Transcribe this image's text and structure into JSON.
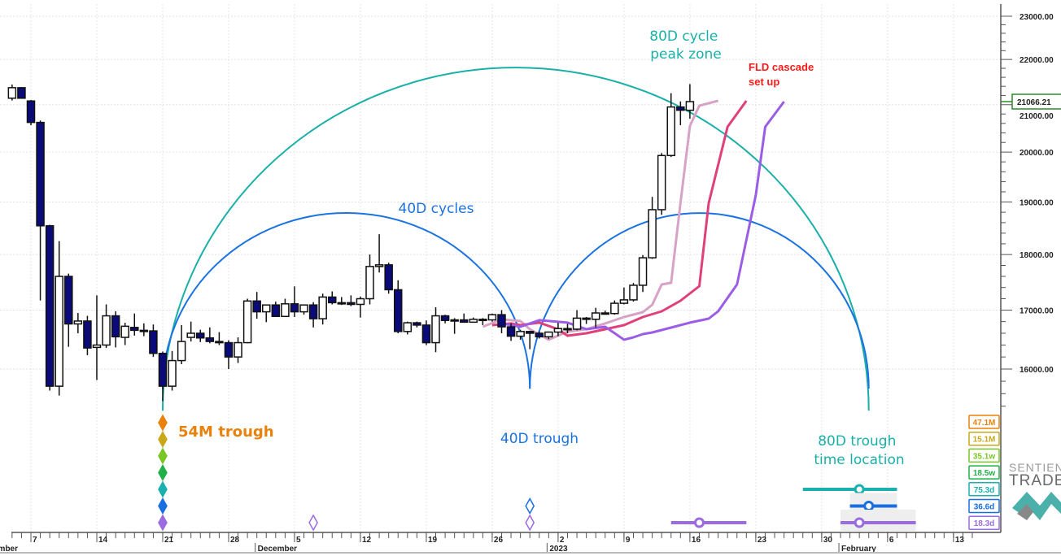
{
  "chart_data": {
    "type": "candlestick",
    "y_scale": "log",
    "ylim": [
      15200,
      23100
    ],
    "xlim": [
      "2022-11-05",
      "2023-02-17"
    ],
    "grid": true,
    "y_ticks": [
      "16000.00",
      "17000.00",
      "18000.00",
      "19000.00",
      "20000.00",
      "21000.00",
      "22000.00",
      "23000.00"
    ],
    "last_price": 21066.21,
    "last_price_label": "21066.21",
    "colors": {
      "up": "#ffffff",
      "down": "#0a0a78",
      "last_price_box": "#2a8a2a"
    },
    "x_ticks": [
      {
        "date": "2022-11-07",
        "label": "7"
      },
      {
        "date": "2022-11-14",
        "label": "14"
      },
      {
        "date": "2022-11-21",
        "label": "21"
      },
      {
        "date": "2022-11-28",
        "label": "28"
      },
      {
        "date": "2022-12-05",
        "label": "5"
      },
      {
        "date": "2022-12-12",
        "label": "12"
      },
      {
        "date": "2022-12-19",
        "label": "19"
      },
      {
        "date": "2022-12-26",
        "label": "26"
      },
      {
        "date": "2023-01-02",
        "label": "2"
      },
      {
        "date": "2023-01-09",
        "label": "9"
      },
      {
        "date": "2023-01-16",
        "label": "16"
      },
      {
        "date": "2023-01-23",
        "label": "23"
      },
      {
        "date": "2023-01-30",
        "label": "30"
      },
      {
        "date": "2023-02-06",
        "label": "6"
      },
      {
        "date": "2023-02-13",
        "label": "13"
      }
    ],
    "month_labels": [
      {
        "date": "2022-11-01",
        "label": "November"
      },
      {
        "date": "2022-12-01",
        "label": "December"
      },
      {
        "date": "2023-01-01",
        "label": "2023"
      },
      {
        "date": "2023-02-01",
        "label": "February"
      }
    ],
    "candles": [
      [
        "2022-11-05",
        21140,
        21440,
        21090,
        21370
      ],
      [
        "2022-11-06",
        21370,
        21380,
        21140,
        21140
      ],
      [
        "2022-11-07",
        21080,
        21100,
        20560,
        20620
      ],
      [
        "2022-11-08",
        20620,
        20660,
        17170,
        18540
      ],
      [
        "2022-11-09",
        18540,
        18560,
        15650,
        15720
      ],
      [
        "2022-11-10",
        15720,
        18250,
        15570,
        17600
      ],
      [
        "2022-11-11",
        17600,
        17650,
        16370,
        16760
      ],
      [
        "2022-11-12",
        16760,
        16950,
        16600,
        16810
      ],
      [
        "2022-11-13",
        16810,
        16900,
        16230,
        16350
      ],
      [
        "2022-11-14",
        16360,
        17260,
        15820,
        16400
      ],
      [
        "2022-11-15",
        16400,
        17100,
        16350,
        16900
      ],
      [
        "2022-11-16",
        16900,
        16980,
        16360,
        16540
      ],
      [
        "2022-11-17",
        16530,
        16780,
        16400,
        16720
      ],
      [
        "2022-11-18",
        16700,
        16940,
        16560,
        16650
      ],
      [
        "2022-11-19",
        16650,
        16770,
        16550,
        16640
      ],
      [
        "2022-11-20",
        16640,
        16750,
        16200,
        16260
      ],
      [
        "2022-11-21",
        16260,
        16290,
        15480,
        15720
      ],
      [
        "2022-11-22",
        15720,
        16300,
        15650,
        16140
      ],
      [
        "2022-11-23",
        16140,
        16740,
        16080,
        16460
      ],
      [
        "2022-11-24",
        16530,
        16800,
        16460,
        16600
      ],
      [
        "2022-11-25",
        16600,
        16660,
        16450,
        16520
      ],
      [
        "2022-11-26",
        16520,
        16700,
        16430,
        16460
      ],
      [
        "2022-11-27",
        16460,
        16620,
        16400,
        16440
      ],
      [
        "2022-11-28",
        16440,
        16480,
        16000,
        16200
      ],
      [
        "2022-11-29",
        16200,
        16530,
        16100,
        16440
      ],
      [
        "2022-11-30",
        16440,
        17200,
        16430,
        17160
      ],
      [
        "2022-12-01",
        17160,
        17320,
        16850,
        16970
      ],
      [
        "2022-12-02",
        16970,
        17100,
        16790,
        17090
      ],
      [
        "2022-12-03",
        17090,
        17150,
        16890,
        16890
      ],
      [
        "2022-12-04",
        16890,
        17200,
        16880,
        17110
      ],
      [
        "2022-12-05",
        17110,
        17420,
        16880,
        16970
      ],
      [
        "2022-12-06",
        16970,
        17100,
        16920,
        17090
      ],
      [
        "2022-12-07",
        17090,
        17140,
        16700,
        16850
      ],
      [
        "2022-12-08",
        16850,
        17290,
        16750,
        17230
      ],
      [
        "2022-12-09",
        17230,
        17330,
        17100,
        17130
      ],
      [
        "2022-12-10",
        17130,
        17230,
        17090,
        17130
      ],
      [
        "2022-12-11",
        17130,
        17260,
        17070,
        17100
      ],
      [
        "2022-12-12",
        17100,
        17240,
        16870,
        17200
      ],
      [
        "2022-12-13",
        17200,
        18000,
        17100,
        17780
      ],
      [
        "2022-12-14",
        17780,
        18380,
        17670,
        17810
      ],
      [
        "2022-12-15",
        17810,
        17850,
        17290,
        17360
      ],
      [
        "2022-12-16",
        17360,
        17530,
        16600,
        16630
      ],
      [
        "2022-12-17",
        16630,
        16800,
        16580,
        16780
      ],
      [
        "2022-12-18",
        16780,
        16800,
        16700,
        16740
      ],
      [
        "2022-12-19",
        16740,
        16820,
        16400,
        16440
      ],
      [
        "2022-12-20",
        16440,
        17050,
        16280,
        16900
      ],
      [
        "2022-12-21",
        16900,
        16920,
        16770,
        16820
      ],
      [
        "2022-12-22",
        16820,
        16860,
        16590,
        16830
      ],
      [
        "2022-12-23",
        16830,
        16940,
        16780,
        16790
      ],
      [
        "2022-12-24",
        16790,
        16870,
        16790,
        16840
      ],
      [
        "2022-12-25",
        16840,
        16860,
        16740,
        16830
      ],
      [
        "2022-12-26",
        16830,
        16940,
        16800,
        16920
      ],
      [
        "2022-12-27",
        16920,
        17000,
        16600,
        16710
      ],
      [
        "2022-12-28",
        16710,
        16770,
        16470,
        16550
      ],
      [
        "2022-12-29",
        16550,
        16660,
        16490,
        16630
      ],
      [
        "2022-12-30",
        16630,
        16640,
        16330,
        16600
      ],
      [
        "2022-12-31",
        16600,
        16630,
        16510,
        16540
      ],
      [
        "2023-01-01",
        16540,
        16630,
        16500,
        16620
      ],
      [
        "2023-01-02",
        16620,
        16780,
        16550,
        16680
      ],
      [
        "2023-01-03",
        16680,
        16760,
        16600,
        16670
      ],
      [
        "2023-01-04",
        16670,
        17000,
        16650,
        16860
      ],
      [
        "2023-01-05",
        16860,
        16880,
        16760,
        16840
      ],
      [
        "2023-01-06",
        16840,
        17040,
        16700,
        16950
      ],
      [
        "2023-01-07",
        16950,
        16990,
        16920,
        16940
      ],
      [
        "2023-01-08",
        16940,
        17170,
        16920,
        17120
      ],
      [
        "2023-01-09",
        17120,
        17400,
        17100,
        17180
      ],
      [
        "2023-01-10",
        17180,
        17480,
        17150,
        17440
      ],
      [
        "2023-01-11",
        17440,
        17990,
        17320,
        17940
      ],
      [
        "2023-01-12",
        17940,
        19100,
        17920,
        18850
      ],
      [
        "2023-01-13",
        18850,
        19980,
        18750,
        19930
      ],
      [
        "2023-01-14",
        19930,
        21250,
        19900,
        20950
      ],
      [
        "2023-01-15",
        20950,
        21070,
        20560,
        20880
      ],
      [
        "2023-01-16",
        20880,
        21450,
        20700,
        21066.21
      ]
    ],
    "fld_lines": [
      {
        "color": "#d6a3c6",
        "points": [
          [
            "2022-12-25",
            16711
          ],
          [
            "2022-12-27",
            16838
          ],
          [
            "2022-12-29",
            16810
          ],
          [
            "2022-12-30",
            16669
          ],
          [
            "2023-01-01",
            16490
          ],
          [
            "2023-01-03",
            16627
          ],
          [
            "2023-01-05",
            16669
          ],
          [
            "2023-01-07",
            16768
          ],
          [
            "2023-01-09",
            16880
          ],
          [
            "2023-01-11",
            16965
          ],
          [
            "2023-01-12",
            17093
          ],
          [
            "2023-01-13",
            17454
          ],
          [
            "2023-01-14",
            17484
          ],
          [
            "2023-01-15",
            18976
          ],
          [
            "2023-01-16",
            20544
          ],
          [
            "2023-01-17",
            20978
          ],
          [
            "2023-01-19",
            21083
          ]
        ]
      },
      {
        "color": "#e0407a",
        "points": [
          [
            "2022-12-26",
            16739
          ],
          [
            "2022-12-28",
            16768
          ],
          [
            "2022-12-29",
            16739
          ],
          [
            "2022-12-31",
            16782
          ],
          [
            "2023-01-02",
            16669
          ],
          [
            "2023-01-03",
            16558
          ],
          [
            "2023-01-05",
            16600
          ],
          [
            "2023-01-07",
            16669
          ],
          [
            "2023-01-09",
            16739
          ],
          [
            "2023-01-11",
            16880
          ],
          [
            "2023-01-13",
            16979
          ],
          [
            "2023-01-15",
            17164
          ],
          [
            "2023-01-17",
            17424
          ],
          [
            "2023-01-18",
            18976
          ],
          [
            "2023-01-20",
            20527
          ],
          [
            "2023-01-22",
            21083
          ]
        ]
      },
      {
        "color": "#9b5de5",
        "points": [
          [
            "2022-12-27",
            16768
          ],
          [
            "2022-12-29",
            16711
          ],
          [
            "2022-12-31",
            16824
          ],
          [
            "2023-01-02",
            16796
          ],
          [
            "2023-01-03",
            16782
          ],
          [
            "2023-01-05",
            16669
          ],
          [
            "2023-01-07",
            16711
          ],
          [
            "2023-01-09",
            16490
          ],
          [
            "2023-01-10",
            16531
          ],
          [
            "2023-01-11",
            16586
          ],
          [
            "2023-01-12",
            16613
          ],
          [
            "2023-01-14",
            16697
          ],
          [
            "2023-01-16",
            16782
          ],
          [
            "2023-01-18",
            16852
          ],
          [
            "2023-01-19",
            16979
          ],
          [
            "2023-01-21",
            17454
          ],
          [
            "2023-01-23",
            19135
          ],
          [
            "2023-01-24",
            20527
          ],
          [
            "2023-01-26",
            21066
          ]
        ]
      }
    ],
    "cycle_arcs": [
      {
        "cycle": "80D",
        "color": "#1ab0a8",
        "start": "2022-11-21",
        "end": "2023-02-04",
        "base": 15330,
        "peak": 21820
      },
      {
        "cycle": "40D",
        "color": "#1a73e0",
        "start": "2022-11-21",
        "end": "2022-12-30",
        "base": 15680,
        "peak": 18786
      },
      {
        "cycle": "40D",
        "color": "#1a73e0",
        "start": "2022-12-30",
        "end": "2023-02-04",
        "base": 15680,
        "peak": 18786
      }
    ],
    "annotations": [
      {
        "text": [
          "80D cycle",
          "peak zone"
        ],
        "color": "#1ab0a8"
      },
      {
        "text": [
          "FLD cascade",
          "set up"
        ],
        "color": "#ff1a1a"
      },
      {
        "text": [
          "40D cycles"
        ],
        "color": "#1a73e0"
      },
      {
        "text": [
          "54M trough"
        ],
        "color": "#e8820c"
      },
      {
        "text": [
          "40D trough"
        ],
        "color": "#1a73e0"
      },
      {
        "text": [
          "80D trough",
          "time location"
        ],
        "color": "#1ab0a8"
      }
    ],
    "cycle_legend": [
      {
        "label": "47.1M",
        "color": "#e8820c"
      },
      {
        "label": "15.1M",
        "color": "#c8a818"
      },
      {
        "label": "35.1w",
        "color": "#7ac626"
      },
      {
        "label": "18.5w",
        "color": "#22b04a"
      },
      {
        "label": "75.3d",
        "color": "#1ab0b0"
      },
      {
        "label": "36.6d",
        "color": "#1a6fe0"
      },
      {
        "label": "18.3d",
        "color": "#9b6be0"
      }
    ],
    "trough_markers": [
      {
        "date": "2022-11-21",
        "levels": [
          0,
          1,
          2,
          3,
          4,
          5,
          6
        ],
        "filled": true
      },
      {
        "date": "2022-12-07",
        "levels": [
          6
        ],
        "filled": false
      },
      {
        "date": "2022-12-30",
        "levels": [
          5,
          6
        ],
        "filled": false
      }
    ],
    "time_ranges": [
      {
        "level": 4,
        "start": "2023-01-28",
        "center": "2023-02-03",
        "end": "2023-02-07",
        "shaded": false
      },
      {
        "level": 5,
        "start": "2023-02-02",
        "center": "2023-02-04",
        "end": "2023-02-07",
        "shaded": true
      },
      {
        "level": 6,
        "start": "2023-01-14",
        "center": "2023-01-17",
        "end": "2023-01-22",
        "shaded": false
      },
      {
        "level": 6,
        "start": "2023-02-01",
        "center": "2023-02-03",
        "end": "2023-02-09",
        "shaded": true
      }
    ],
    "logo": {
      "line1": "SENTIENT",
      "line2": "TRADER"
    }
  }
}
